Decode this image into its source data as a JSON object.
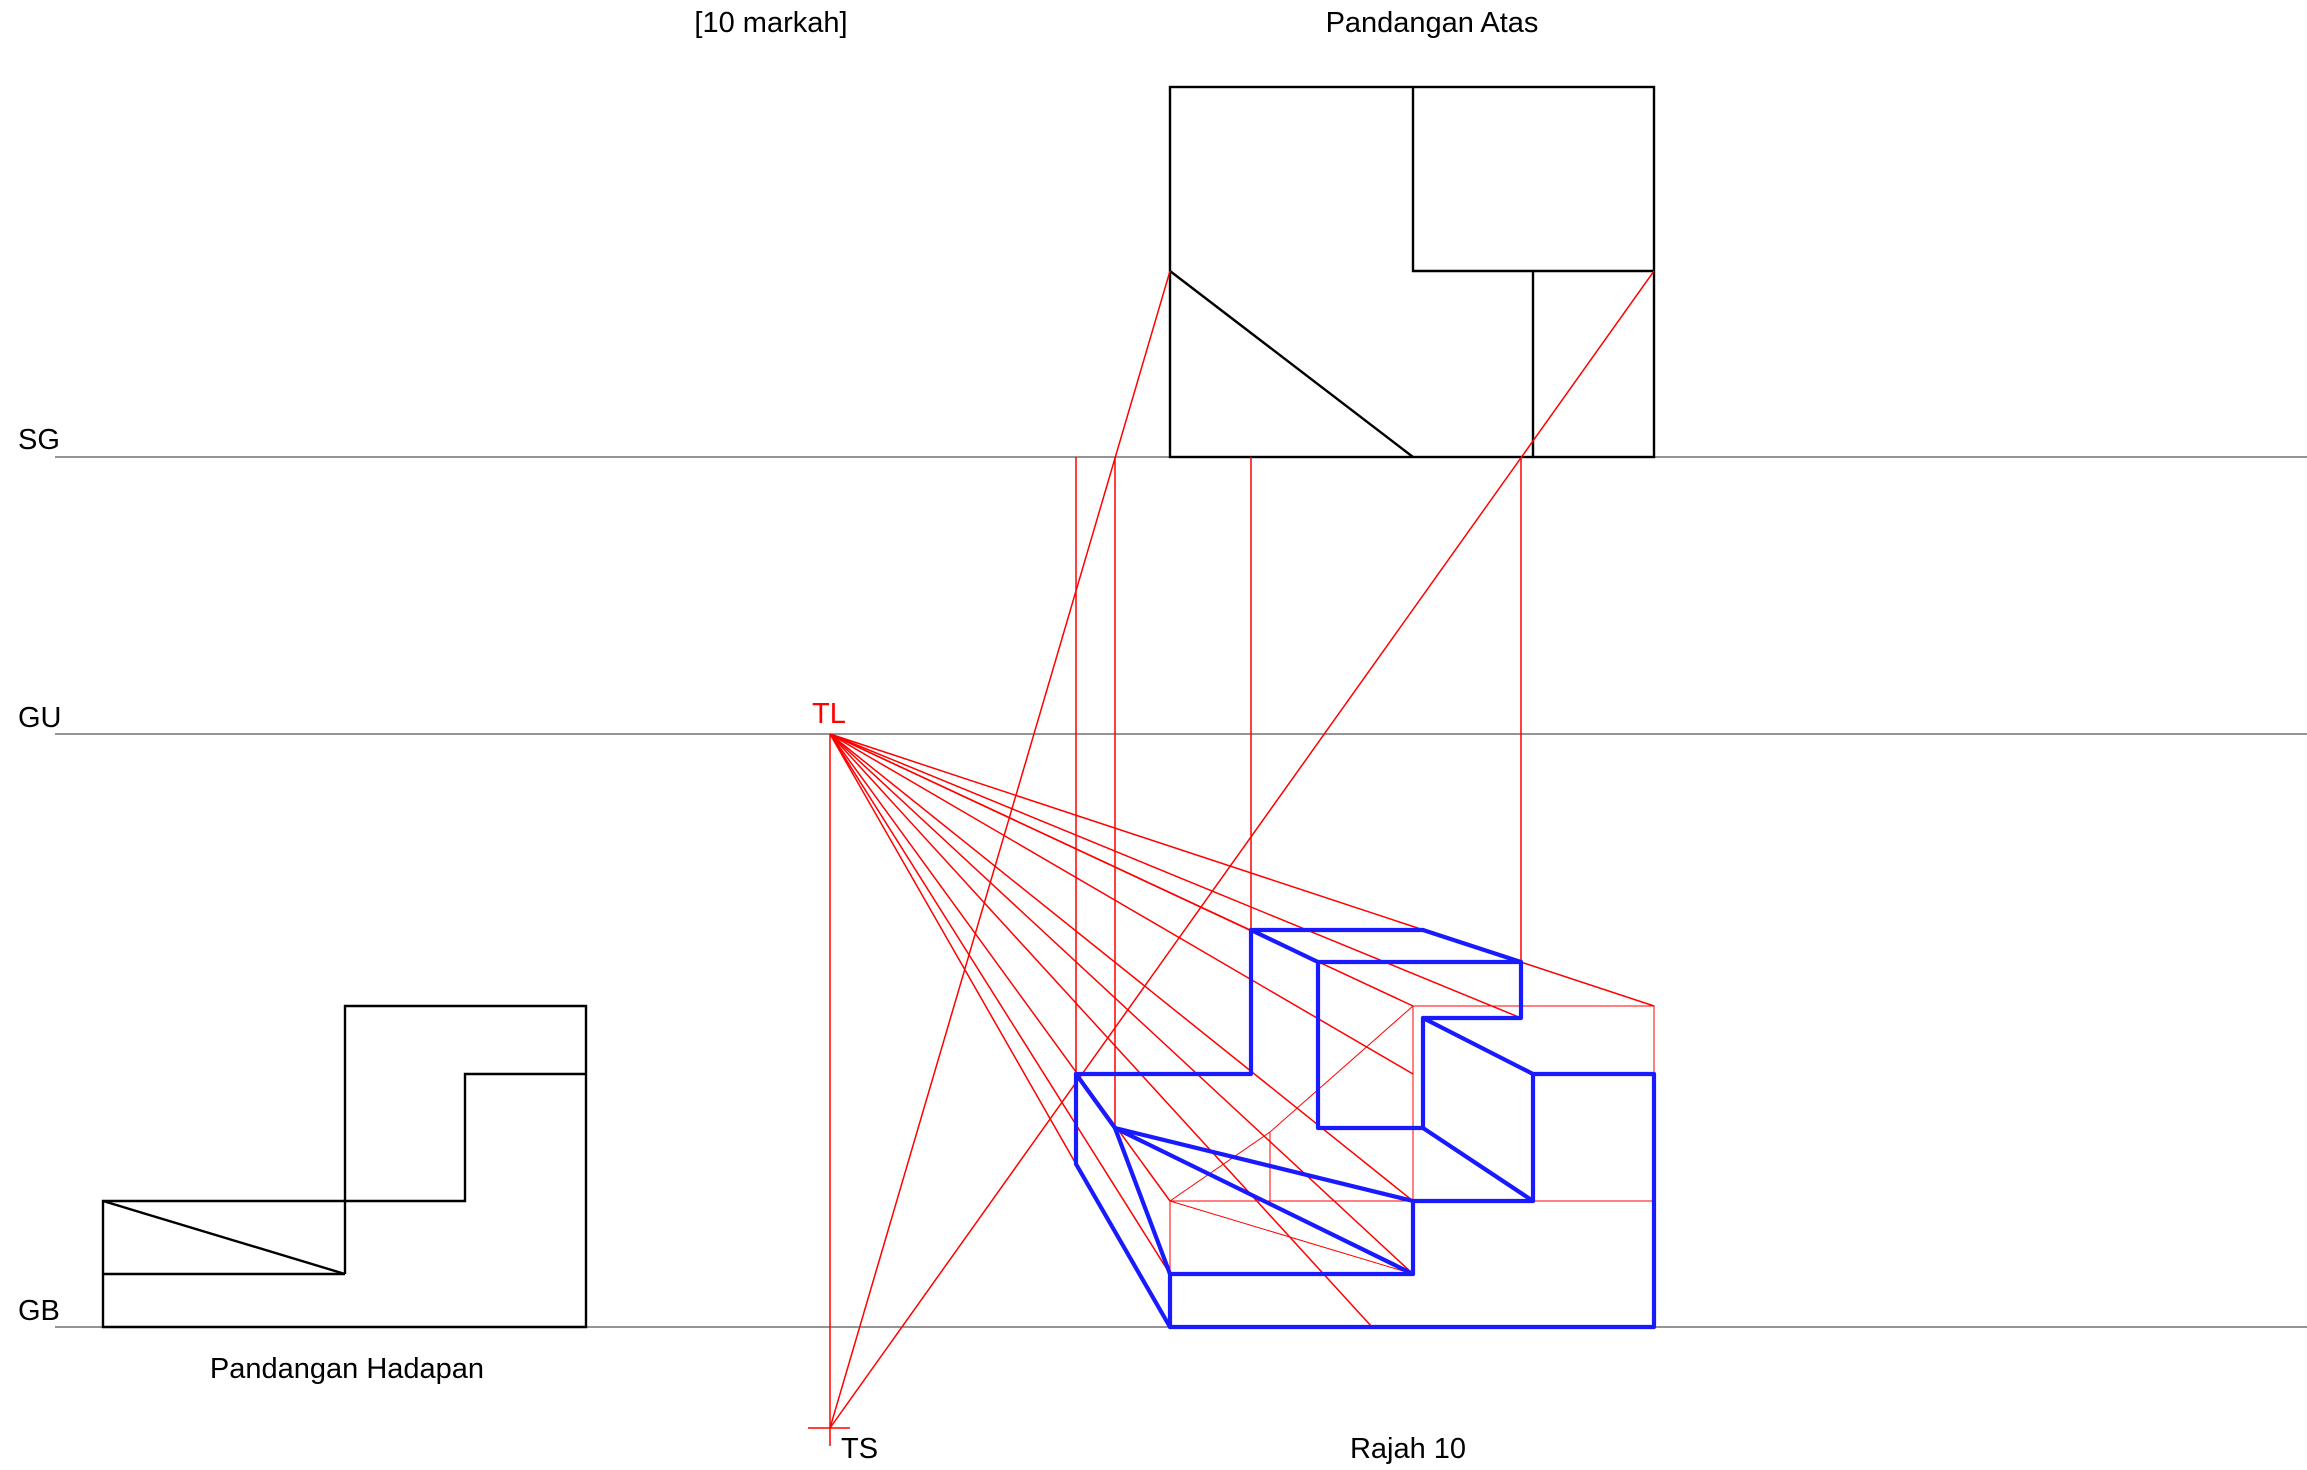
{
  "labels": {
    "marks": "[10 markah]",
    "top_view": "Pandangan Atas",
    "front_view": "Pandangan Hadapan",
    "figure": "Rajah 10",
    "picture_plane": "SG",
    "horizon_line": "GU",
    "ground_line": "GB",
    "vanishing_point": "TL",
    "station_point": "TS"
  },
  "colors": {
    "drawing": "#000000",
    "construction": "#ff0000",
    "result": "#1a1aff",
    "vanishing_label": "#ff0000"
  }
}
